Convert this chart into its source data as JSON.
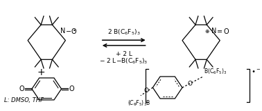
{
  "background_color": "#ffffff",
  "line_color": "#000000",
  "text_color": "#000000",
  "fig_width": 3.78,
  "fig_height": 1.61,
  "dpi": 100,
  "arrow_text_top": "2 B(C$_6$F$_5$)$_3$",
  "arrow_text_bottom1": "+ 2 L",
  "arrow_text_bottom2": "\\u2013 2 L-B(C$_6$F$_5$)$_3$",
  "L_label": "L: DMSO, THF",
  "product_label_left": "(C$_6$F$_5$)$_3$B",
  "product_label_right": "B(C$_6$F$_5$)$_3$"
}
